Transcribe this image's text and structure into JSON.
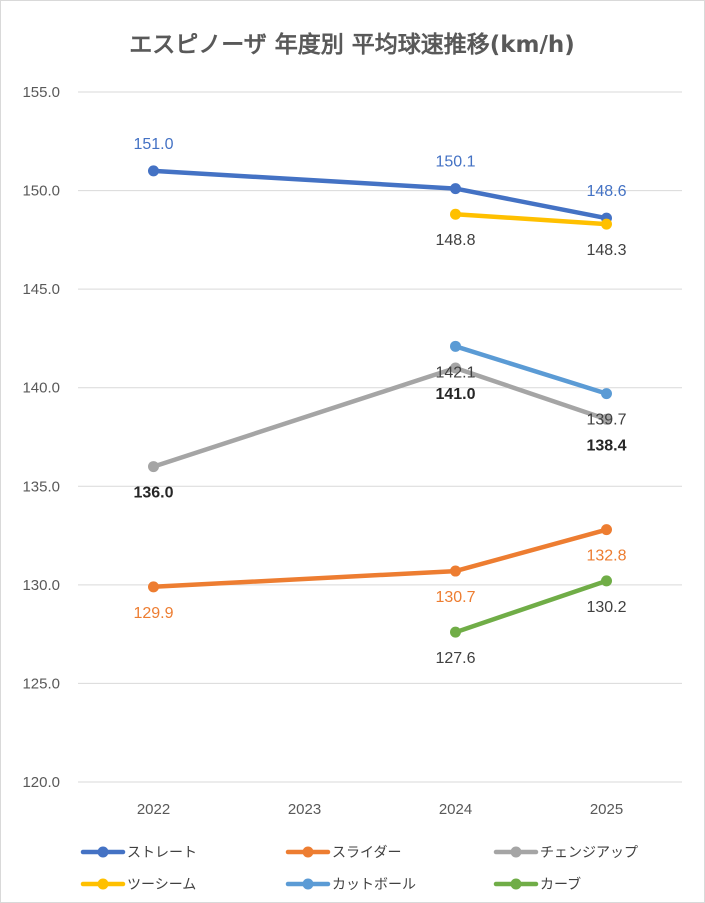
{
  "chart_data": {
    "type": "line",
    "title": "エスピノーザ 年度別 平均球速推移(km/h)",
    "categories": [
      "2022",
      "2023",
      "2024",
      "2025"
    ],
    "ylim": [
      120,
      155
    ],
    "y_ticks": [
      "120.0",
      "125.0",
      "130.0",
      "135.0",
      "140.0",
      "145.0",
      "150.0",
      "155.0"
    ],
    "grid": true,
    "legend_position": "bottom",
    "series": [
      {
        "name": "ストレート",
        "color": "#4472c4",
        "values": [
          151.0,
          null,
          150.1,
          148.6
        ],
        "labels": [
          "151.0",
          "",
          "150.1",
          "148.6"
        ],
        "label_color": "#4472c4",
        "label_pos": "above",
        "bold": false
      },
      {
        "name": "スライダー",
        "color": "#ed7d31",
        "values": [
          129.9,
          null,
          130.7,
          132.8
        ],
        "labels": [
          "129.9",
          "",
          "130.7",
          "132.8"
        ],
        "label_color": "#ed7d31",
        "label_pos": "below",
        "bold": false
      },
      {
        "name": "チェンジアップ",
        "color": "#a5a5a5",
        "values": [
          136.0,
          null,
          141.0,
          138.4
        ],
        "labels": [
          "136.0",
          "",
          "141.0",
          "138.4"
        ],
        "label_color": "#262626",
        "label_pos": "below",
        "bold": true
      },
      {
        "name": "ツーシーム",
        "color": "#ffc000",
        "values": [
          null,
          null,
          148.8,
          148.3
        ],
        "labels": [
          "",
          "",
          "148.8",
          "148.3"
        ],
        "label_color": "#404040",
        "label_pos": "below",
        "bold": false
      },
      {
        "name": "カットボール",
        "color": "#5b9bd5",
        "values": [
          null,
          null,
          142.1,
          139.7
        ],
        "labels": [
          "",
          "",
          "142.1",
          "139.7"
        ],
        "label_color": "#404040",
        "label_pos": "below",
        "bold": false
      },
      {
        "name": "カーブ",
        "color": "#70ad47",
        "values": [
          null,
          null,
          127.6,
          130.2
        ],
        "labels": [
          "",
          "",
          "127.6",
          "130.2"
        ],
        "label_color": "#404040",
        "label_pos": "below",
        "bold": false
      }
    ]
  }
}
